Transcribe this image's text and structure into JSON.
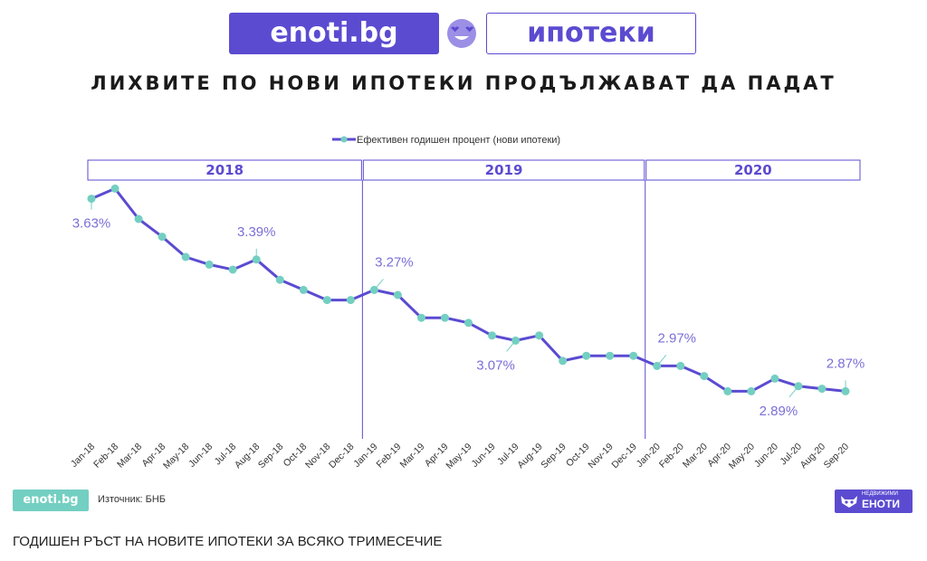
{
  "header": {
    "brand": "enoti.bg",
    "topic": "ипотеки",
    "headline": "ЛИХВИТЕ ПО НОВИ ИПОТЕКИ ПРОДЪЛЖАВАТ ДА ПАДАТ"
  },
  "chart_data": {
    "type": "line",
    "title": "",
    "xlabel": "",
    "ylabel": "",
    "ylim": [
      2.7,
      3.7
    ],
    "grid": false,
    "legend_position": "top-center",
    "year_groups": [
      {
        "label": "2018",
        "first": 0,
        "last": 11
      },
      {
        "label": "2019",
        "first": 12,
        "last": 23
      },
      {
        "label": "2020",
        "first": 24,
        "last": 32
      }
    ],
    "categories": [
      "Jan-18",
      "Feb-18",
      "Mar-18",
      "Apr-18",
      "May-18",
      "Jun-18",
      "Jul-18",
      "Aug-18",
      "Sep-18",
      "Oct-18",
      "Nov-18",
      "Dec-18",
      "Jan-19",
      "Feb-19",
      "Mar-19",
      "Apr-19",
      "May-19",
      "Jun-19",
      "Jul-19",
      "Aug-19",
      "Sep-19",
      "Oct-19",
      "Nov-19",
      "Dec-19",
      "Jan-20",
      "Feb-20",
      "Mar-20",
      "Apr-20",
      "May-20",
      "Jun-20",
      "Jul-20",
      "Aug-20",
      "Sep-20"
    ],
    "series": [
      {
        "name": "Ефективен годишен процент (нови ипотеки)",
        "color": "#5b4bd1",
        "marker_color": "#73cfc1",
        "values": [
          3.63,
          3.67,
          3.55,
          3.48,
          3.4,
          3.37,
          3.35,
          3.39,
          3.31,
          3.27,
          3.23,
          3.23,
          3.27,
          3.25,
          3.16,
          3.16,
          3.14,
          3.09,
          3.07,
          3.09,
          2.99,
          3.01,
          3.01,
          3.01,
          2.97,
          2.97,
          2.93,
          2.87,
          2.87,
          2.92,
          2.89,
          2.88,
          2.87
        ]
      }
    ],
    "annotations": [
      {
        "index": 0,
        "text": "3.63%"
      },
      {
        "index": 7,
        "text": "3.39%"
      },
      {
        "index": 12,
        "text": "3.27%"
      },
      {
        "index": 18,
        "text": "3.07%"
      },
      {
        "index": 24,
        "text": "2.97%"
      },
      {
        "index": 30,
        "text": "2.89%"
      },
      {
        "index": 32,
        "text": "2.87%"
      }
    ]
  },
  "footer": {
    "brand": "enoti.bg",
    "source": "Източник: БНБ",
    "logo_small": "НЕДВИЖИМИ",
    "logo_name": "ЕНОТИ"
  },
  "bottom_text": "ГОДИШЕН РЪСТ НА НОВИТЕ ИПОТЕКИ ЗА ВСЯКО ТРИМЕСЕЧИЕ"
}
